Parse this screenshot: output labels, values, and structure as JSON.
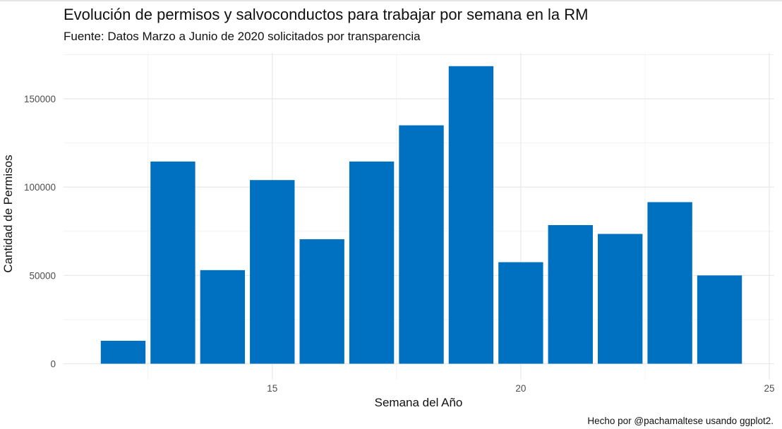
{
  "chart_data": {
    "type": "bar",
    "title": "Evolución de permisos y salvoconductos para trabajar por semana en la RM",
    "subtitle": "Fuente: Datos Marzo a Junio de 2020 solicitados por transparencia",
    "caption": "Hecho por @pachamaltese usando ggplot2.",
    "xlabel": "Semana del Año",
    "ylabel": "Cantidad de Permisos",
    "x": [
      12,
      13,
      14,
      15,
      16,
      17,
      18,
      19,
      20,
      21,
      22,
      23,
      24
    ],
    "values": [
      13000,
      114500,
      53000,
      104000,
      70500,
      114500,
      135000,
      168500,
      57500,
      78500,
      73500,
      91500,
      50000
    ],
    "xlim": [
      10.8,
      25.1
    ],
    "ylim": [
      -9000,
      176000
    ],
    "x_ticks": [
      15,
      20,
      25
    ],
    "y_ticks": [
      0,
      50000,
      100000,
      150000
    ],
    "bar_color": "#0070c0",
    "grid": true,
    "legend": "none"
  }
}
